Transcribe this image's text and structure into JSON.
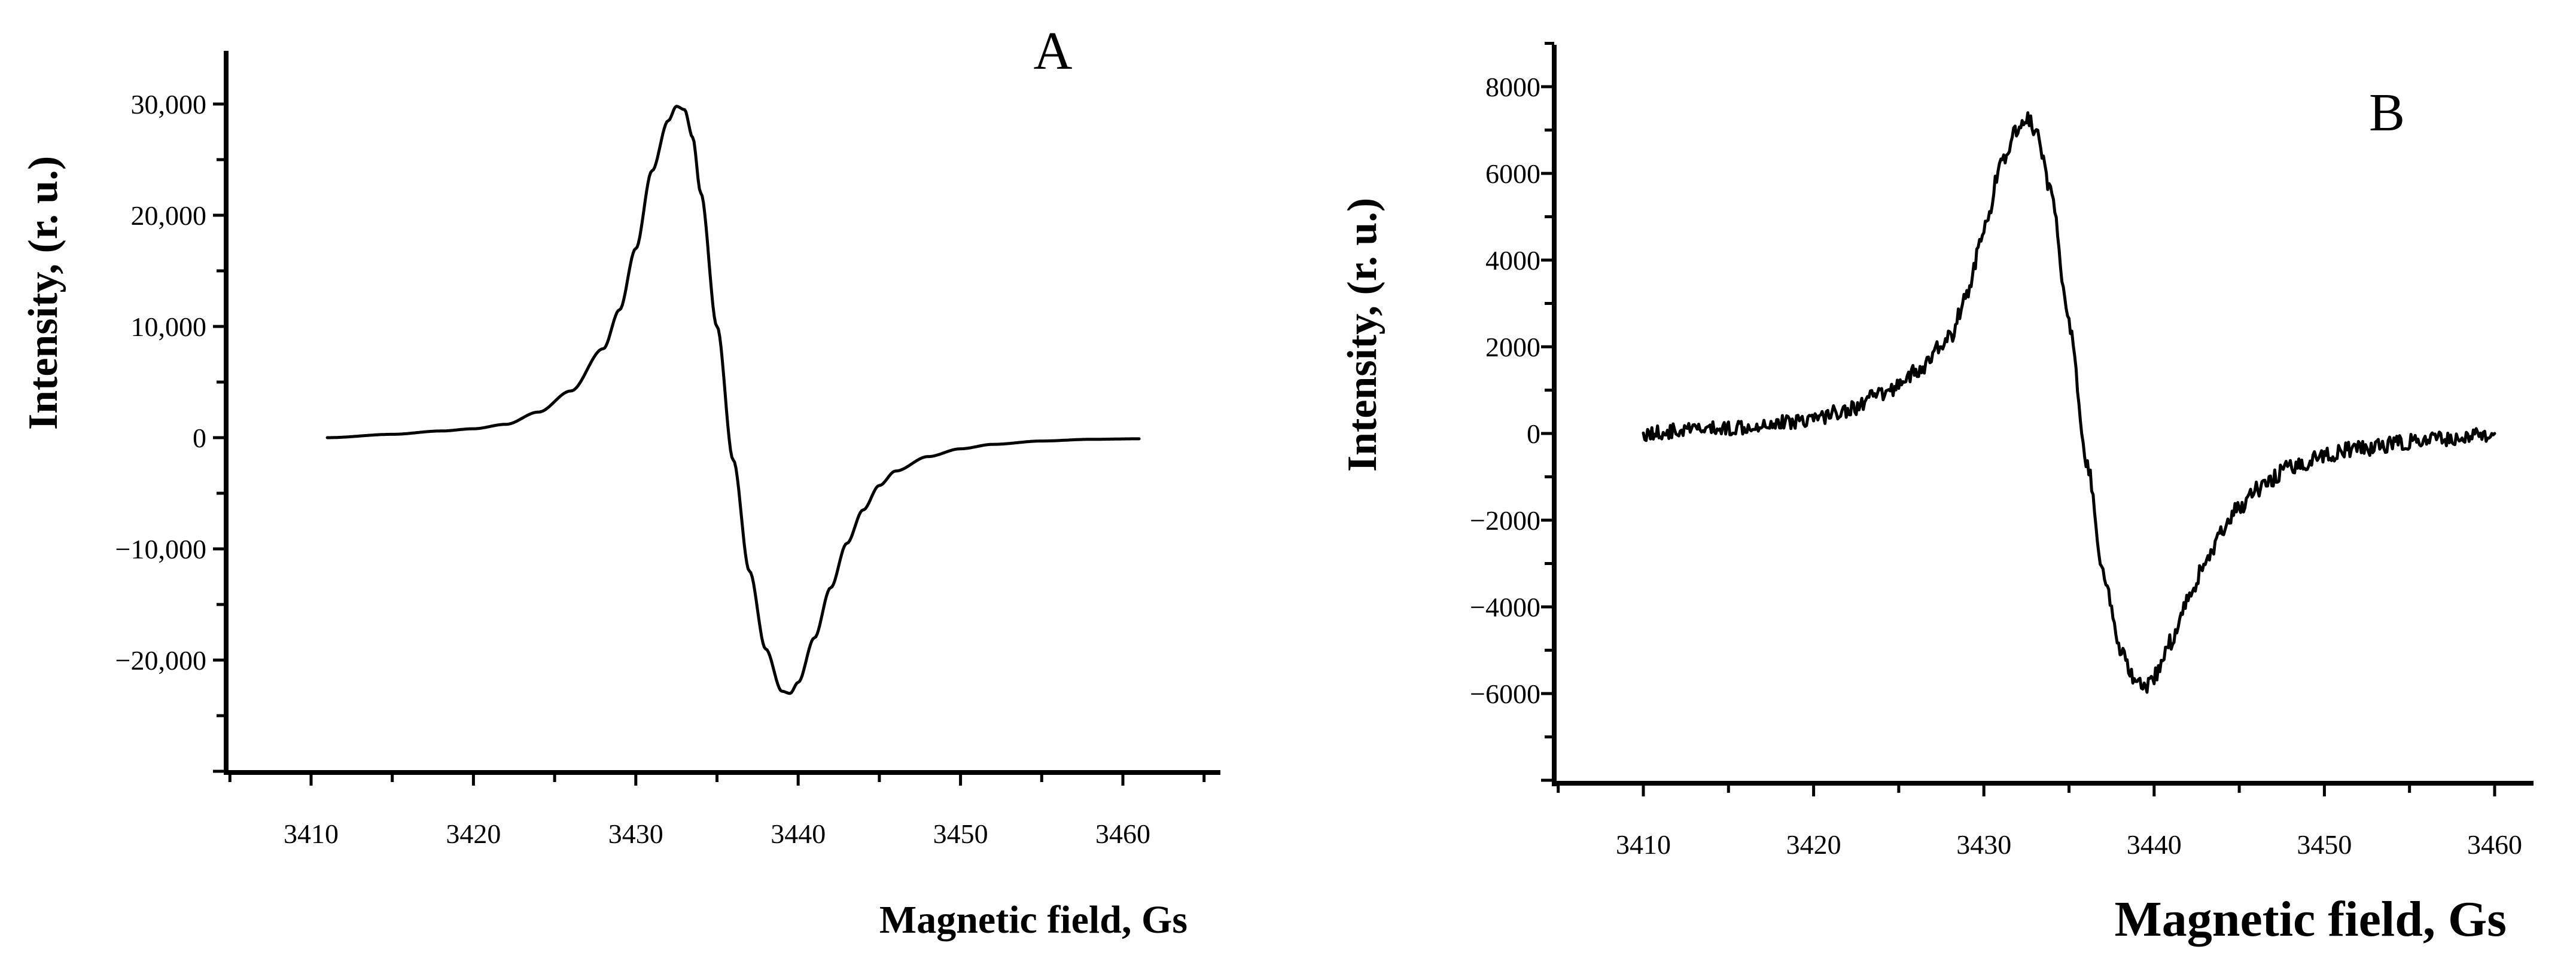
{
  "chart_data": [
    {
      "type": "line",
      "panel": "A",
      "xlabel": "Magnetic field, Gs",
      "ylabel": "Intensity, (r. u.)",
      "xlim": [
        3405,
        3465
      ],
      "ylim": [
        -30000,
        33000
      ],
      "xticks": [
        3410,
        3420,
        3430,
        3440,
        3450,
        3460
      ],
      "xtick_labels": [
        "3410",
        "3420",
        "3430",
        "3440",
        "3450",
        "3460"
      ],
      "yticks": [
        -20000,
        -10000,
        0,
        10000,
        20000,
        30000
      ],
      "ytick_labels": [
        "−20,000",
        "−10,000",
        "0",
        "10,000",
        "20,000",
        "30,000"
      ],
      "grid": false,
      "noise": 0,
      "series": [
        {
          "x": [
            3411,
            3415,
            3418,
            3420,
            3422,
            3424,
            3426,
            3428,
            3429,
            3430,
            3431,
            3432,
            3432.5,
            3433,
            3433.5,
            3434,
            3435,
            3436,
            3437,
            3438,
            3439,
            3439.5,
            3440,
            3441,
            3442,
            3443,
            3444,
            3445,
            3446,
            3448,
            3450,
            3452,
            3455,
            3458,
            3461
          ],
          "y": [
            0,
            300,
            600,
            800,
            1200,
            2300,
            4200,
            8000,
            11500,
            17000,
            24000,
            28500,
            29800,
            29500,
            27000,
            22000,
            10000,
            -2000,
            -12000,
            -19000,
            -22800,
            -23000,
            -22000,
            -18000,
            -13500,
            -9500,
            -6500,
            -4300,
            -3000,
            -1700,
            -1000,
            -600,
            -300,
            -150,
            -100
          ]
        }
      ]
    },
    {
      "type": "line",
      "panel": "B",
      "xlabel": "Magnetic field, Gs",
      "ylabel": "Intensity, (r. u.)",
      "xlim": [
        3405,
        3465
      ],
      "ylim": [
        -8000,
        9000
      ],
      "xticks": [
        3410,
        3420,
        3430,
        3440,
        3450,
        3460
      ],
      "xtick_labels": [
        "3410",
        "3420",
        "3430",
        "3440",
        "3450",
        "3460"
      ],
      "yticks": [
        -6000,
        -4000,
        -2000,
        0,
        2000,
        4000,
        6000,
        8000
      ],
      "ytick_labels": [
        "−6000",
        "−4000",
        "−2000",
        "0",
        "2000",
        "4000",
        "6000",
        "8000"
      ],
      "grid": false,
      "noise": 180,
      "series": [
        {
          "x": [
            3410,
            3414,
            3418,
            3420,
            3422,
            3424,
            3426,
            3428,
            3429,
            3430,
            3431,
            3432,
            3432.5,
            3433,
            3434,
            3435,
            3436,
            3437,
            3438,
            3439,
            3439.5,
            3440,
            3441,
            3442,
            3443,
            3444,
            3445,
            3446,
            3448,
            3450,
            3452,
            3455,
            3458,
            3460
          ],
          "y": [
            0,
            100,
            250,
            350,
            550,
            900,
            1400,
            2200,
            3200,
            4700,
            6200,
            7000,
            7300,
            7000,
            5500,
            2500,
            -600,
            -3200,
            -5000,
            -5800,
            -5900,
            -5600,
            -4800,
            -3800,
            -3000,
            -2300,
            -1700,
            -1300,
            -800,
            -500,
            -350,
            -200,
            -100,
            0
          ]
        }
      ]
    }
  ],
  "panels": {
    "a": {
      "letter": "A",
      "xaxis_title": "Magnetic field, Gs",
      "yaxis_title": "Intensity, (r. u.)"
    },
    "b": {
      "letter": "B",
      "xaxis_title": "Magnetic field, Gs",
      "yaxis_title": "Intensity, (r. u.)"
    }
  }
}
